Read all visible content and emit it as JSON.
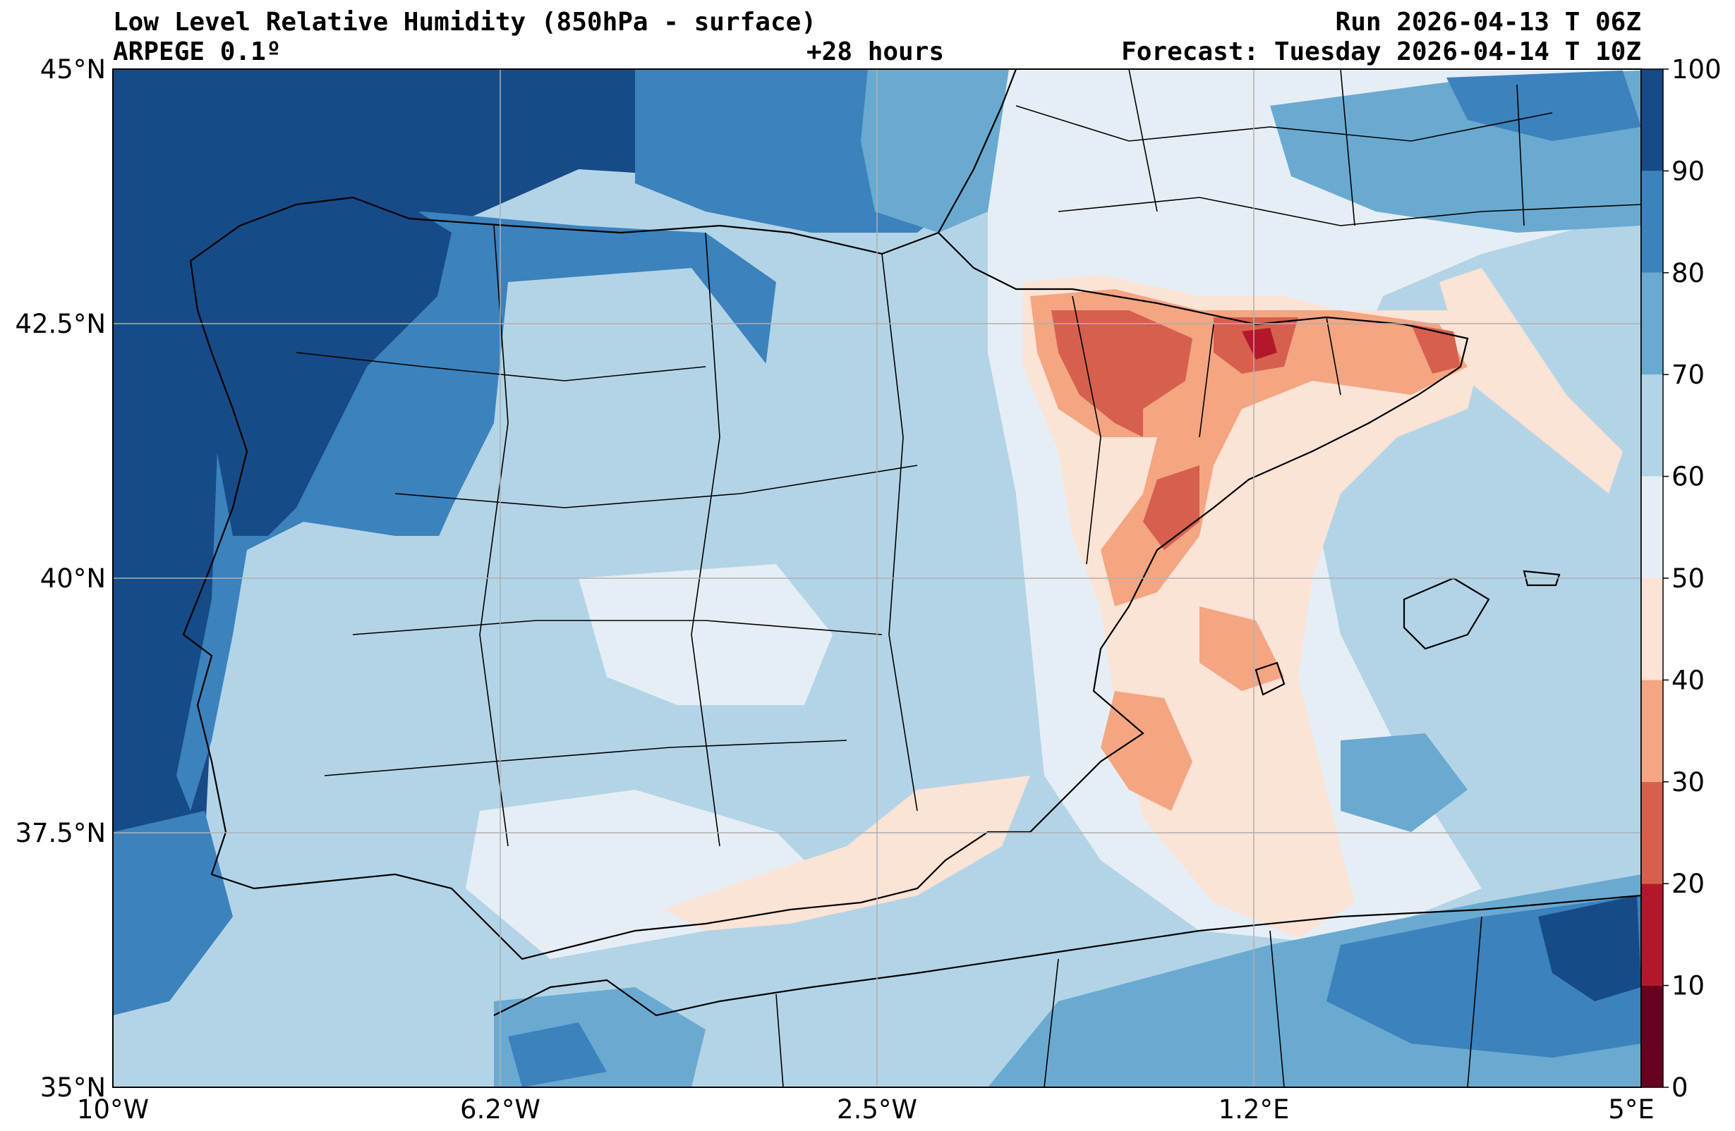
{
  "header": {
    "title": "Low Level Relative Humidity (850hPa - surface)",
    "run": "Run 2026-04-13 T 06Z",
    "model": "ARPEGE 0.1º",
    "lead_time": "+28 hours",
    "forecast": "Forecast: Tuesday 2026-04-14 T 10Z"
  },
  "map": {
    "lat_labels": [
      "45°N",
      "42.5°N",
      "40°N",
      "37.5°N",
      "35°N"
    ],
    "lon_labels": [
      "10°W",
      "6.2°W",
      "2.5°W",
      "1.2°E",
      "5°E"
    ],
    "extent": {
      "lon_min": -10,
      "lon_max": 5,
      "lat_min": 35,
      "lat_max": 45
    }
  },
  "colorbar": {
    "ticks": [
      "0",
      "10",
      "20",
      "30",
      "40",
      "50",
      "60",
      "70",
      "80",
      "90",
      "100"
    ],
    "levels": [
      {
        "from": 0,
        "to": 10,
        "color": "#67001f"
      },
      {
        "from": 10,
        "to": 20,
        "color": "#b2182b"
      },
      {
        "from": 20,
        "to": 30,
        "color": "#d6604d"
      },
      {
        "from": 30,
        "to": 40,
        "color": "#f4a582"
      },
      {
        "from": 40,
        "to": 50,
        "color": "#fbe3d6"
      },
      {
        "from": 50,
        "to": 60,
        "color": "#e6eef5"
      },
      {
        "from": 60,
        "to": 70,
        "color": "#b3d4e7"
      },
      {
        "from": 70,
        "to": 80,
        "color": "#6aaad1"
      },
      {
        "from": 80,
        "to": 90,
        "color": "#3c82bd"
      },
      {
        "from": 90,
        "to": 100,
        "color": "#164b87"
      }
    ]
  },
  "colors": {
    "rh_90_100": "#164b87",
    "rh_80_90": "#3c82bd",
    "rh_70_80": "#6aaad1",
    "rh_60_70": "#b3d4e7",
    "rh_50_60": "#e6eef5",
    "rh_40_50": "#fbe3d6",
    "rh_30_40": "#f4a582",
    "rh_20_30": "#d6604d",
    "rh_10_20": "#b2182b",
    "gridline": "#b0b0b0",
    "border": "#000000"
  }
}
